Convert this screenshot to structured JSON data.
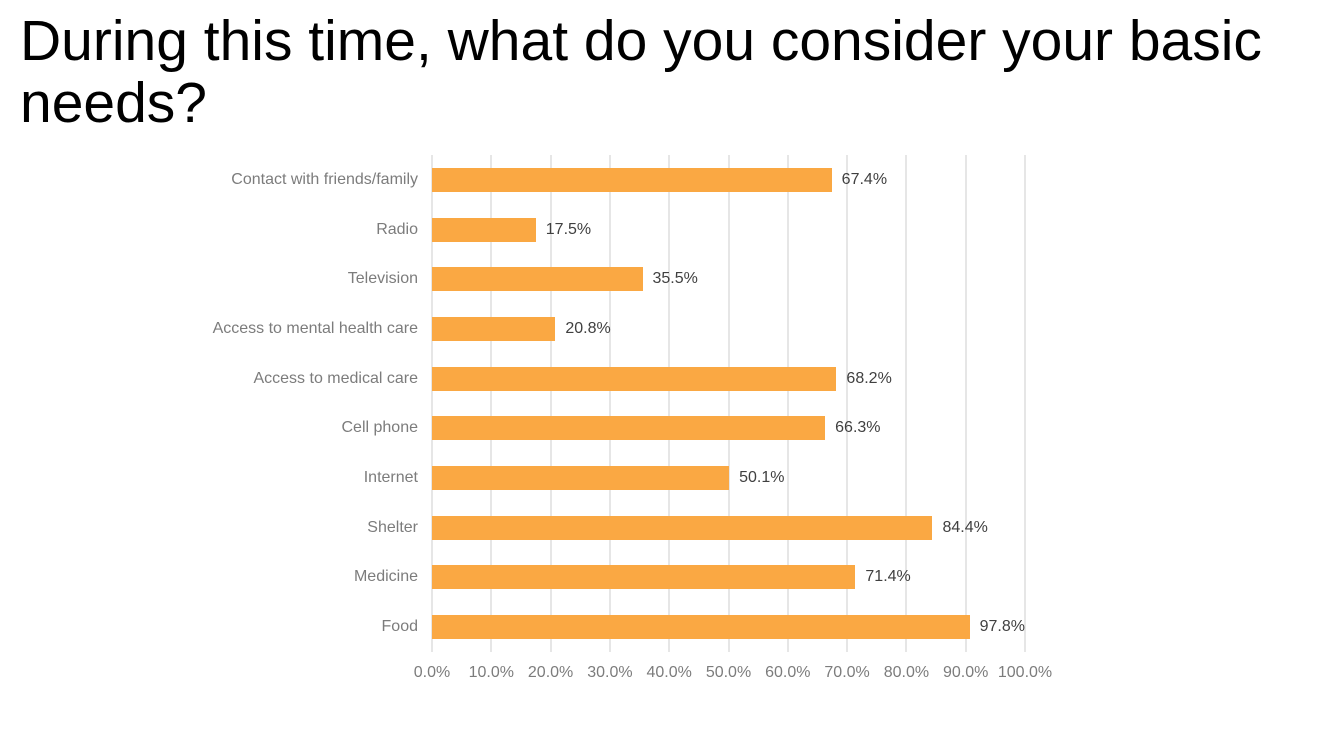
{
  "page": {
    "title": "During this time, what do you consider your basic needs?"
  },
  "chart_data": {
    "type": "bar",
    "orientation": "horizontal",
    "title": "During this time, what do you consider your basic needs?",
    "categories": [
      "Contact with friends/family",
      "Radio",
      "Television",
      "Access to mental health care",
      "Access to medical care",
      "Cell phone",
      "Internet",
      "Shelter",
      "Medicine",
      "Food"
    ],
    "values": [
      67.4,
      17.5,
      35.5,
      20.8,
      68.2,
      66.3,
      50.1,
      84.4,
      71.4,
      97.8
    ],
    "value_labels": [
      "67.4%",
      "17.5%",
      "35.5%",
      "20.8%",
      "68.2%",
      "66.3%",
      "50.1%",
      "84.4%",
      "71.4%",
      "97.8%"
    ],
    "x_ticks": [
      "0.0%",
      "10.0%",
      "20.0%",
      "30.0%",
      "40.0%",
      "50.0%",
      "60.0%",
      "70.0%",
      "80.0%",
      "90.0%",
      "100.0%"
    ],
    "xlim": [
      0,
      100
    ],
    "grid": true,
    "legend": "none",
    "colors": {
      "bar": "#FAA843",
      "gridline": "#E6E6E6",
      "category_label": "#7C7C7C",
      "tick_label": "#7C7C7C",
      "value_label": "#404040",
      "title": "#000000",
      "background": "#FFFFFF"
    }
  }
}
